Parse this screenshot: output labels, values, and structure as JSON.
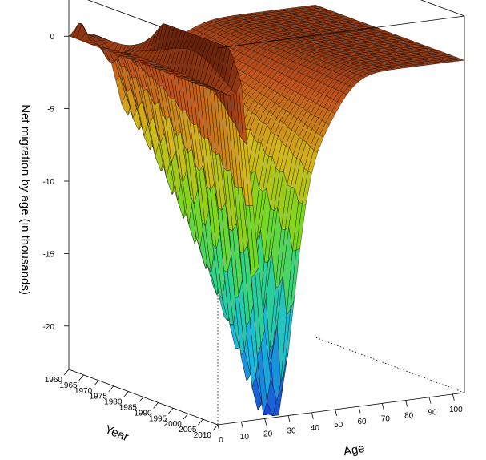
{
  "chart_data": {
    "type": "surface3d",
    "title": "",
    "zlabel": "Net migration by age (in thousands)",
    "xlabel": "Age",
    "ylabel": "Year",
    "x_ticks": [
      0,
      10,
      20,
      30,
      40,
      50,
      60,
      70,
      80,
      90,
      100
    ],
    "y_ticks": [
      1960,
      1965,
      1970,
      1975,
      1980,
      1985,
      1990,
      1995,
      2000,
      2005,
      2010
    ],
    "z_ticks": [
      0,
      -5,
      -10,
      -15,
      -20
    ],
    "xlim": [
      0,
      105
    ],
    "ylim": [
      1960,
      2010
    ],
    "zlim": [
      -23,
      3
    ],
    "colormap": [
      "#1a3fd6",
      "#1ab8e0",
      "#2fd48a",
      "#7ad81c",
      "#d6b81a",
      "#c2521c",
      "#5a1a08"
    ],
    "features": {
      "trough_age": 25,
      "trough_min": -23,
      "peak_age": 10,
      "peak_value": -1
    }
  }
}
